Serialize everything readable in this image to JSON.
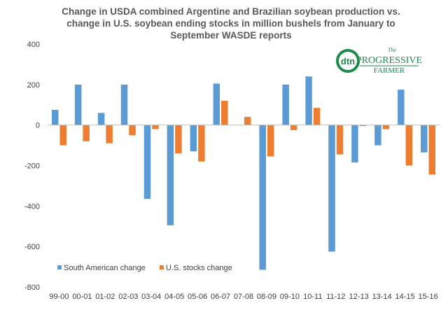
{
  "chart_data": {
    "type": "bar",
    "title_lines": [
      "Change in USDA combined Argentine and Brazilian soybean production vs.",
      "change in U.S. soybean ending stocks in million bushels from January to",
      "September WASDE reports"
    ],
    "categories": [
      "99-00",
      "00-01",
      "01-02",
      "02-03",
      "03-04",
      "04-05",
      "05-06",
      "06-07",
      "07-08",
      "08-09",
      "09-10",
      "10-11",
      "11-12",
      "12-13",
      "13-14",
      "14-15",
      "15-16"
    ],
    "series": [
      {
        "name": "South American change",
        "color": "#5B9BD5",
        "values": [
          75,
          200,
          60,
          200,
          -365,
          -495,
          -130,
          205,
          0,
          -715,
          200,
          240,
          -625,
          -185,
          -100,
          175,
          -135
        ]
      },
      {
        "name": "U.S. stocks change",
        "color": "#ED7D31",
        "values": [
          -100,
          -80,
          -90,
          -50,
          -20,
          -140,
          -180,
          120,
          40,
          -155,
          -25,
          85,
          -145,
          -5,
          -20,
          -200,
          -245
        ]
      }
    ],
    "ylim": [
      -800,
      400
    ],
    "yticks": [
      -800,
      -600,
      -400,
      -200,
      0,
      200,
      400
    ],
    "grid": false,
    "legend_position": "bottom-left"
  },
  "logo": {
    "badge": "dtn",
    "line1": "The",
    "line2": "PROGRESSIVE",
    "line3": "FARMER"
  }
}
